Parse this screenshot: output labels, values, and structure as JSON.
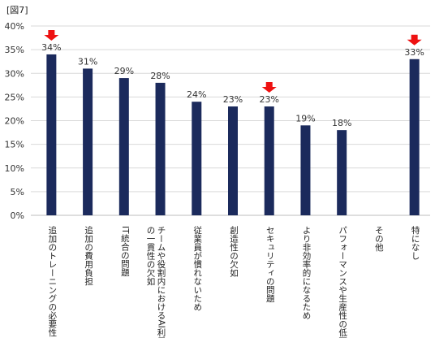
{
  "figure_label": "[図7]",
  "chart_data": {
    "type": "bar",
    "title": "",
    "xlabel": "",
    "ylabel": "",
    "ylim": [
      0,
      40
    ],
    "yticks": [
      "0%",
      "5%",
      "10%",
      "15%",
      "20%",
      "25%",
      "30%",
      "35%",
      "40%"
    ],
    "ytick_values": [
      0,
      5,
      10,
      15,
      20,
      25,
      30,
      35,
      40
    ],
    "grid": true,
    "bar_color": "#1b2a5c",
    "highlight_color": "#ee1111",
    "categories": [
      "追加のトレーニングの必要性",
      "追加の費用負担",
      "IT統合の問題",
      "チームや役割内におけるAI利用の一貫性の欠如",
      "従業員が慣れないため",
      "創造性の欠如",
      "セキュリティの問題",
      "より非効率的になるため",
      "パフォーマンスや生産性の低下",
      "その他",
      "特になし"
    ],
    "values": [
      34,
      31,
      29,
      28,
      24,
      23,
      23,
      19,
      18,
      0,
      33
    ],
    "data_labels": [
      "34%",
      "31%",
      "29%",
      "28%",
      "24%",
      "23%",
      "23%",
      "19%",
      "18%",
      "",
      "33%"
    ],
    "highlighted": [
      true,
      false,
      false,
      false,
      false,
      false,
      true,
      false,
      false,
      false,
      true
    ]
  }
}
